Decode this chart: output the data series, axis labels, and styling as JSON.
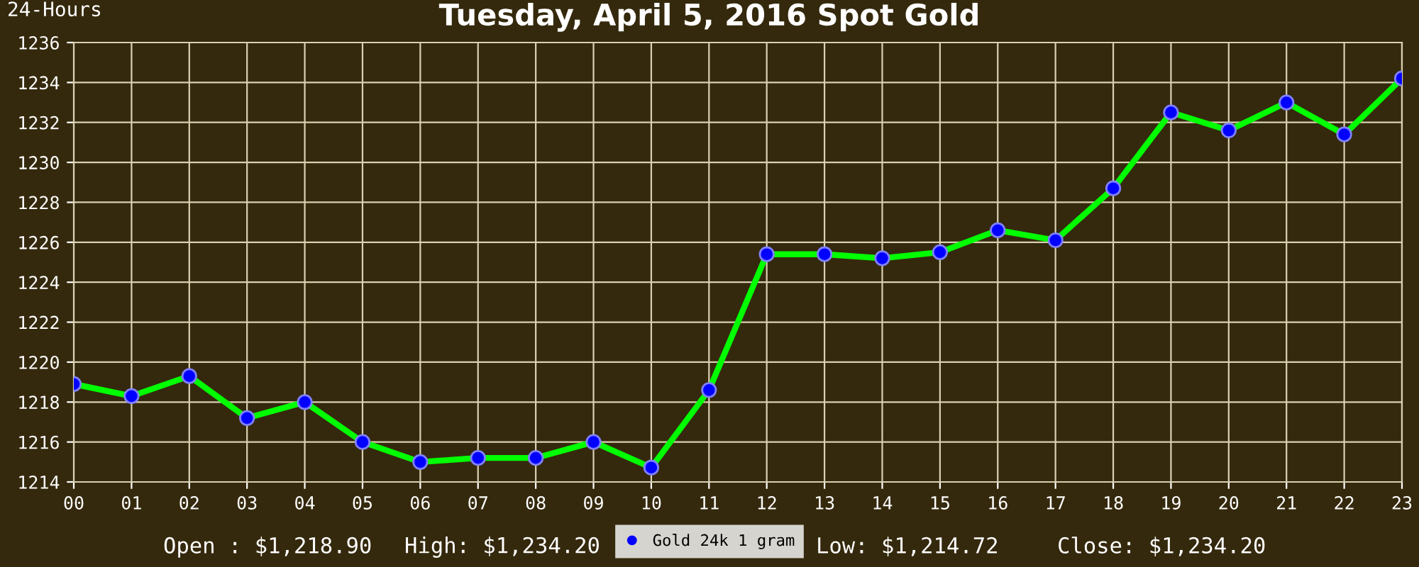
{
  "chart_data": {
    "type": "line",
    "title": "Tuesday, April 5, 2016 Spot Gold",
    "categories": [
      "00",
      "01",
      "02",
      "03",
      "04",
      "05",
      "06",
      "07",
      "08",
      "09",
      "10",
      "11",
      "12",
      "13",
      "14",
      "15",
      "16",
      "17",
      "18",
      "19",
      "20",
      "21",
      "22",
      "23"
    ],
    "series": [
      {
        "name": "Gold 24k 1 gram",
        "color": "#00ff00",
        "values": [
          1218.9,
          1218.3,
          1219.3,
          1217.2,
          1218.0,
          1216.0,
          1215.0,
          1215.2,
          1215.2,
          1216.0,
          1214.72,
          1218.6,
          1225.4,
          1225.4,
          1225.2,
          1225.5,
          1226.6,
          1226.1,
          1228.7,
          1232.5,
          1231.6,
          1233.0,
          1231.4,
          1234.2
        ]
      }
    ],
    "ylim": [
      1214,
      1236
    ],
    "yticks": [
      1214,
      1216,
      1218,
      1220,
      1222,
      1224,
      1226,
      1228,
      1230,
      1232,
      1234,
      1236
    ],
    "grid": true,
    "legend": "bottom",
    "marker": "circle",
    "line_style": "solid",
    "annotations": [
      "24-Hours",
      "Open : $1,218.90",
      "High: $1,234.20",
      "Low: $1,214.72",
      "Close: $1,234.20"
    ]
  }
}
